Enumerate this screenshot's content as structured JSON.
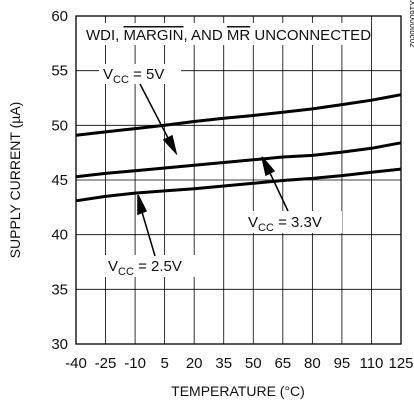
{
  "chart_data": {
    "type": "line",
    "xlabel": "TEMPERATURE (°C)",
    "ylabel": "SUPPLY CURRENT (µA)",
    "xlim": [
      -40,
      125
    ],
    "ylim": [
      30,
      60
    ],
    "x_ticks": [
      -40,
      -25,
      -10,
      5,
      20,
      35,
      50,
      65,
      80,
      95,
      110,
      125
    ],
    "y_ticks": [
      30,
      35,
      40,
      45,
      50,
      55,
      60
    ],
    "grid": true,
    "figure_id": "MAX16000toc02",
    "condition": {
      "prefix": "WDI, ",
      "margin": "MARGIN",
      "mid": ", AND ",
      "mr": "MR",
      "suffix": " UNCONNECTED"
    },
    "series": [
      {
        "name": "VCC = 5V",
        "label_main": "V",
        "label_sub": "CC",
        "label_rest": " = 5V",
        "x": [
          -40,
          -25,
          -10,
          5,
          20,
          35,
          50,
          65,
          80,
          95,
          110,
          125
        ],
        "y": [
          49.1,
          49.4,
          49.7,
          50.0,
          50.35,
          50.65,
          50.9,
          51.2,
          51.5,
          51.9,
          52.3,
          52.8
        ]
      },
      {
        "name": "VCC = 3.3V",
        "label_main": "V",
        "label_sub": "CC",
        "label_rest": " = 3.3V",
        "x": [
          -40,
          -25,
          -10,
          5,
          20,
          35,
          50,
          65,
          80,
          95,
          110,
          125
        ],
        "y": [
          45.3,
          45.6,
          45.85,
          46.1,
          46.35,
          46.6,
          46.85,
          47.1,
          47.25,
          47.55,
          47.9,
          48.4
        ]
      },
      {
        "name": "VCC = 2.5V",
        "label_main": "V",
        "label_sub": "CC",
        "label_rest": " = 2.5V",
        "x": [
          -40,
          -25,
          -10,
          5,
          20,
          35,
          50,
          65,
          80,
          95,
          110,
          125
        ],
        "y": [
          43.1,
          43.5,
          43.8,
          44.0,
          44.2,
          44.45,
          44.7,
          44.95,
          45.15,
          45.4,
          45.7,
          46.0
        ]
      }
    ]
  }
}
